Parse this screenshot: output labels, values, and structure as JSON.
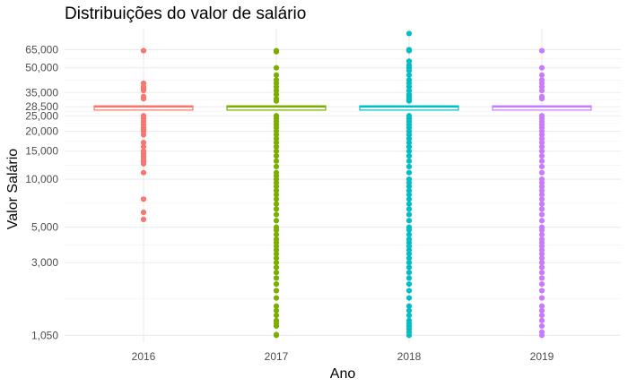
{
  "chart_data": {
    "type": "boxplot",
    "title": "Distribuições do valor de salário",
    "xlabel": "Ano",
    "ylabel": "Valor Salário",
    "y_scale": "log10",
    "ylim": [
      950,
      88000
    ],
    "categories": [
      "2016",
      "2017",
      "2018",
      "2019"
    ],
    "y_ticks": [
      {
        "value": 1050,
        "label": "1,050"
      },
      {
        "value": 3000,
        "label": "3,000"
      },
      {
        "value": 5000,
        "label": "5,000"
      },
      {
        "value": 10000,
        "label": "10,000"
      },
      {
        "value": 15000,
        "label": "15,000"
      },
      {
        "value": 20000,
        "label": "20,000"
      },
      {
        "value": 25000,
        "label": "25,000"
      },
      {
        "value": 28500,
        "label": "28,500"
      },
      {
        "value": 35000,
        "label": "35,000"
      },
      {
        "value": 50000,
        "label": "50,000"
      },
      {
        "value": 65000,
        "label": "65,000"
      }
    ],
    "minor_gridlines": [
      1775,
      3873,
      7071,
      12247,
      17321,
      22361,
      26693,
      31583,
      41833,
      57009
    ],
    "grid": true,
    "legend": "none",
    "series": [
      {
        "category": "2016",
        "color": "#F8766D",
        "box": {
          "q1": 27500,
          "median": 28500,
          "q3": 28500
        },
        "outliers": [
          64000,
          40000,
          38000,
          37000,
          36000,
          33000,
          32000,
          25000,
          24000,
          23000,
          22000,
          21000,
          20500,
          20000,
          19000,
          17000,
          16000,
          15000,
          14500,
          14000,
          13500,
          13000,
          12500,
          11000,
          7500,
          6200,
          5600
        ]
      },
      {
        "category": "2017",
        "color": "#7CAE00",
        "box": {
          "q1": 27500,
          "median": 28500,
          "q3": 28500
        },
        "outliers": [
          64000,
          63000,
          50000,
          45000,
          42000,
          40000,
          38000,
          36000,
          34000,
          32000,
          31000,
          25000,
          24000,
          23000,
          22000,
          21000,
          20000,
          19000,
          18000,
          17000,
          16000,
          15000,
          14000,
          13000,
          12000,
          11000,
          10500,
          10000,
          9500,
          9000,
          8500,
          8000,
          7500,
          7000,
          6500,
          6000,
          5500,
          5000,
          4800,
          4500,
          4200,
          4000,
          3800,
          3600,
          3400,
          3200,
          3000,
          2800,
          2600,
          2400,
          2200,
          2000,
          1800,
          1600,
          1500,
          1400,
          1300,
          1250,
          1200,
          1060,
          1050
        ]
      },
      {
        "category": "2018",
        "color": "#00BFC4",
        "box": {
          "q1": 27500,
          "median": 28500,
          "q3": 28500
        },
        "outliers": [
          82000,
          65000,
          64000,
          55000,
          52000,
          50000,
          48000,
          45000,
          42000,
          40000,
          38000,
          36000,
          34000,
          33000,
          32000,
          31000,
          25000,
          24000,
          23000,
          22000,
          21000,
          20000,
          19000,
          18000,
          17000,
          16000,
          15000,
          14000,
          13000,
          12000,
          11000,
          10000,
          9500,
          9000,
          8500,
          8000,
          7500,
          7000,
          6500,
          6000,
          5500,
          5000,
          4800,
          4500,
          4200,
          4000,
          3800,
          3600,
          3400,
          3200,
          3000,
          2800,
          2600,
          2400,
          2200,
          2000,
          1800,
          1600,
          1500,
          1400,
          1300,
          1250,
          1200,
          1150,
          1100,
          1050
        ]
      },
      {
        "category": "2019",
        "color": "#C77CFF",
        "box": {
          "q1": 27500,
          "median": 28500,
          "q3": 28500
        },
        "outliers": [
          64000,
          50000,
          45000,
          42000,
          40000,
          38000,
          36000,
          33000,
          32000,
          25000,
          24000,
          23000,
          22000,
          21000,
          20000,
          19000,
          18000,
          17000,
          16000,
          15000,
          14000,
          13000,
          12000,
          11000,
          10000,
          9500,
          9000,
          8500,
          8000,
          7500,
          7000,
          6500,
          6000,
          5500,
          5000,
          4800,
          4500,
          4200,
          4000,
          3800,
          3600,
          3400,
          3200,
          3000,
          2800,
          2600,
          2400,
          2200,
          2000,
          1800,
          1600,
          1500,
          1400,
          1300,
          1200,
          1100,
          1050
        ]
      }
    ]
  }
}
